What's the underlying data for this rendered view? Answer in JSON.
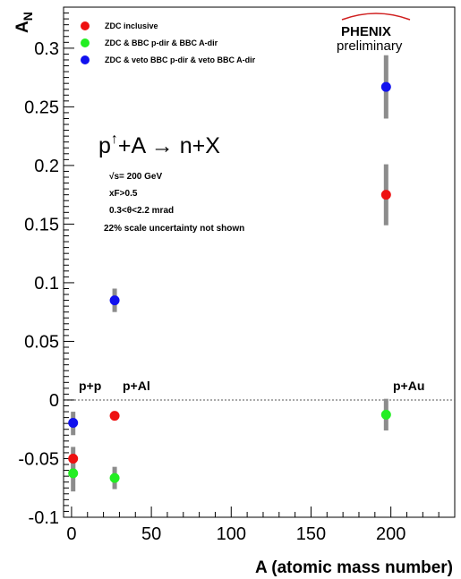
{
  "chart_data": {
    "type": "scatter",
    "xlabel": "A (atomic mass number)",
    "ylabel": "A_N",
    "xlim": [
      -5,
      240
    ],
    "ylim": [
      -0.1,
      0.335
    ],
    "x_ticks": [
      "0",
      "50",
      "100",
      "150",
      "200"
    ],
    "y_ticks": [
      "-0.1",
      "-0.05",
      "0",
      "0.05",
      "0.1",
      "0.15",
      "0.2",
      "0.25",
      "0.3"
    ],
    "grid": false,
    "zero_line": true,
    "legend_position": "top-left",
    "series": [
      {
        "name": "ZDC inclusive",
        "color": "#ee1111",
        "points": [
          {
            "x": 1,
            "y": -0.05,
            "sys_low": -0.06,
            "sys_high": -0.04
          },
          {
            "x": 27,
            "y": -0.0135,
            "sys_low": -0.015,
            "sys_high": -0.012
          },
          {
            "x": 197,
            "y": 0.175,
            "sys_low": 0.149,
            "sys_high": 0.201
          }
        ]
      },
      {
        "name": "ZDC & BBC p-dir & BBC A-dir",
        "color": "#22ee22",
        "points": [
          {
            "x": 1,
            "y": -0.0625,
            "sys_low": -0.078,
            "sys_high": -0.047
          },
          {
            "x": 27,
            "y": -0.0665,
            "sys_low": -0.076,
            "sys_high": -0.057
          },
          {
            "x": 197,
            "y": -0.0125,
            "sys_low": -0.026,
            "sys_high": 0.001
          }
        ]
      },
      {
        "name": "ZDC & veto BBC p-dir & veto BBC A-dir",
        "color": "#1111ee",
        "points": [
          {
            "x": 1,
            "y": -0.0195,
            "sys_low": -0.03,
            "sys_high": -0.01
          },
          {
            "x": 27,
            "y": 0.085,
            "sys_low": 0.075,
            "sys_high": 0.095
          },
          {
            "x": 197,
            "y": 0.267,
            "sys_low": 0.24,
            "sys_high": 0.294
          }
        ]
      }
    ],
    "annotations": {
      "reaction": "p↑+A → n+X",
      "notes": [
        "√s= 200 GeV",
        "xF>0.5",
        "0.3<θ<2.2 mrad",
        "22% scale uncertainty not shown"
      ],
      "system_labels": [
        "p+p",
        "p+Al",
        "p+Au"
      ]
    }
  },
  "logo": {
    "main": "PHENIX",
    "sub": "preliminary"
  }
}
